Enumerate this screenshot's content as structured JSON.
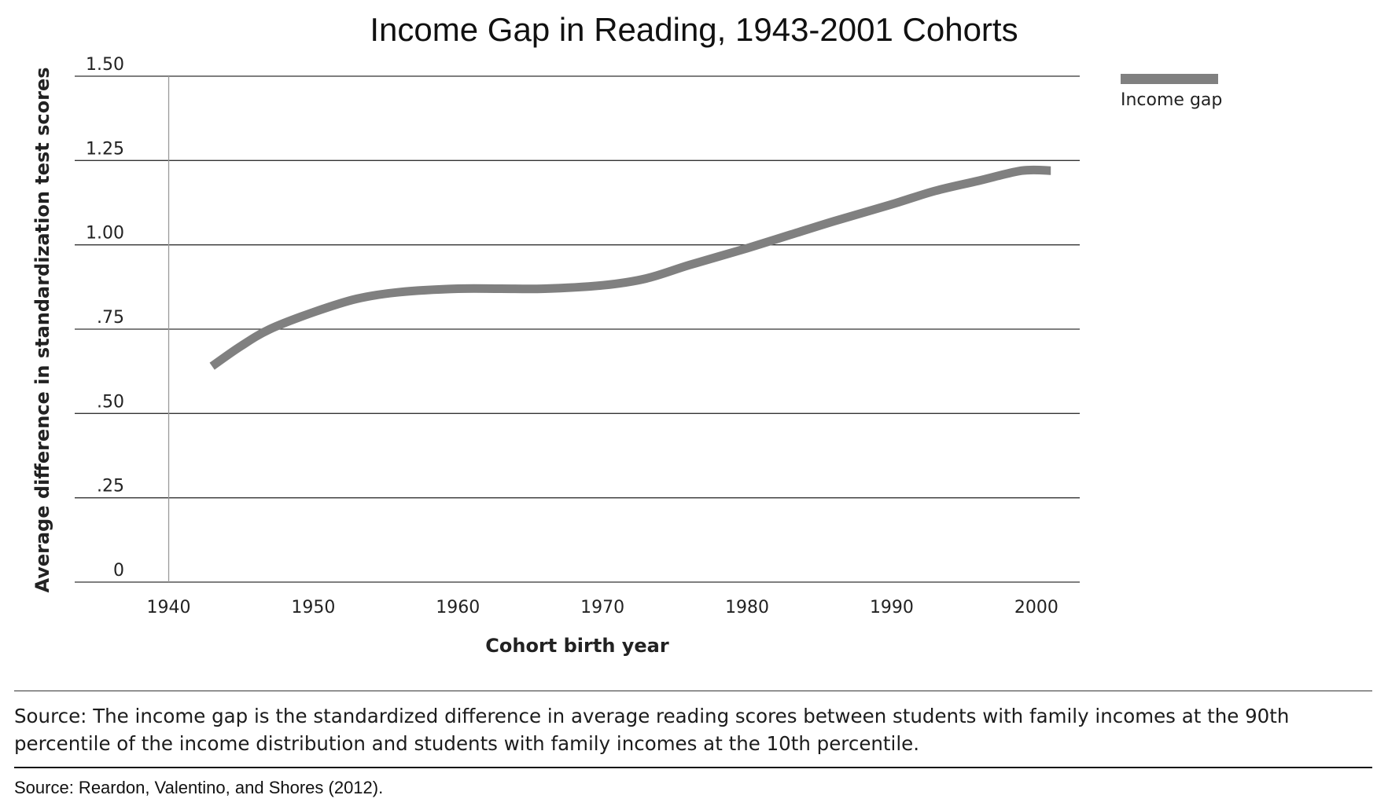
{
  "chart_data": {
    "type": "line",
    "title": "Income Gap in Reading, 1943-2001 Cohorts",
    "xlabel": "Cohort birth year",
    "ylabel": "Average difference in standardization test scores",
    "xlim": [
      1933.5,
      2003
    ],
    "ylim": [
      0,
      1.5
    ],
    "x_ticks": [
      1940,
      1950,
      1960,
      1970,
      1980,
      1990,
      2000
    ],
    "x_tick_labels": [
      "1940",
      "1950",
      "1960",
      "1970",
      "1980",
      "1990",
      "2000"
    ],
    "y_ticks": [
      0,
      0.25,
      0.5,
      0.75,
      1.0,
      1.25,
      1.5
    ],
    "y_tick_labels": [
      "0",
      ".25",
      ".50",
      ".75",
      "1.00",
      "1.25",
      "1.50"
    ],
    "grid": "horizontal",
    "legend_position": "right",
    "series": [
      {
        "name": "Income gap",
        "color": "#808080",
        "x": [
          1943,
          1945,
          1947,
          1950,
          1953,
          1956,
          1960,
          1963,
          1966,
          1970,
          1973,
          1976,
          1980,
          1983,
          1986,
          1990,
          1993,
          1996,
          1999,
          2001
        ],
        "values": [
          0.64,
          0.7,
          0.75,
          0.8,
          0.84,
          0.86,
          0.87,
          0.87,
          0.87,
          0.88,
          0.9,
          0.94,
          0.99,
          1.03,
          1.07,
          1.12,
          1.16,
          1.19,
          1.22,
          1.22
        ]
      }
    ]
  },
  "note": "Source: The income gap is the standardized difference in average reading scores between students with family incomes at the 90th percentile of the income distribution and students with family incomes at the 10th percentile.",
  "source": "Source: Reardon, Valentino, and Shores (2012)."
}
